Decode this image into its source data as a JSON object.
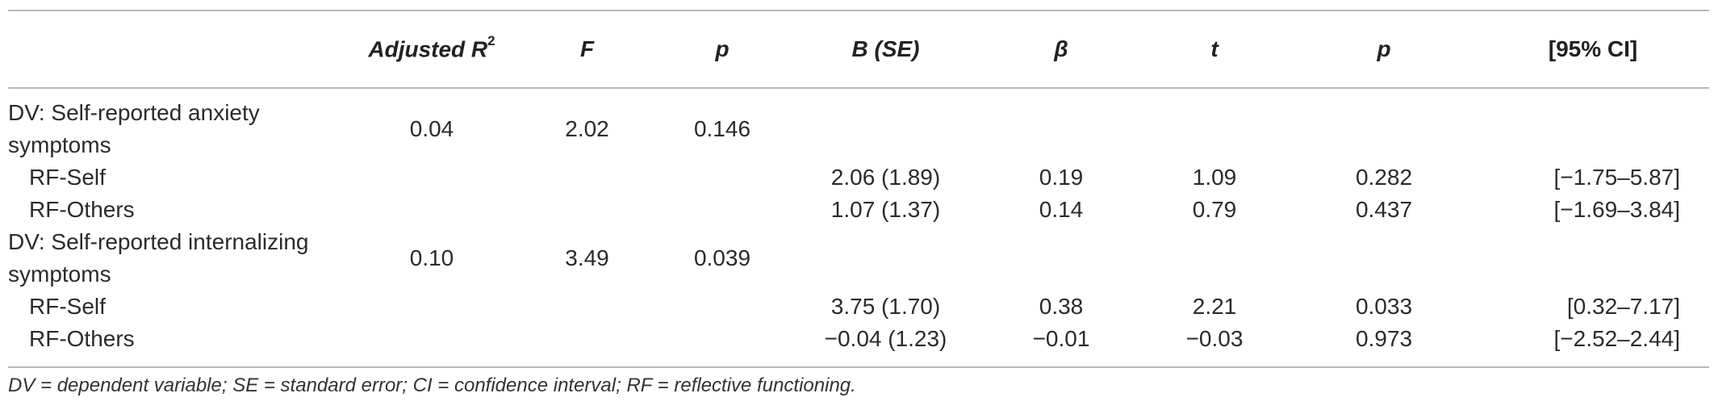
{
  "table": {
    "headers": {
      "col0": "",
      "adj_r2": "Adjusted R",
      "adj_r2_sup": "2",
      "f": "F",
      "p1": "p",
      "b_se": "B (SE)",
      "beta": "β",
      "t": "t",
      "p2": "p",
      "ci": "[95% CI]"
    },
    "rows": [
      {
        "label": "DV: Self-reported anxiety symptoms",
        "adj_r2": "0.04",
        "f": "2.02",
        "p1": "0.146",
        "b_se": "",
        "beta": "",
        "t": "",
        "p2": "",
        "ci": ""
      },
      {
        "label": "RF-Self",
        "adj_r2": "",
        "f": "",
        "p1": "",
        "b_se": "2.06 (1.89)",
        "beta": "0.19",
        "t": "1.09",
        "p2": "0.282",
        "ci": "[−1.75–5.87]"
      },
      {
        "label": "RF-Others",
        "adj_r2": "",
        "f": "",
        "p1": "",
        "b_se": "1.07 (1.37)",
        "beta": "0.14",
        "t": "0.79",
        "p2": "0.437",
        "ci": "[−1.69–3.84]"
      },
      {
        "label": "DV: Self-reported internalizing symptoms",
        "adj_r2": "0.10",
        "f": "3.49",
        "p1": "0.039",
        "b_se": "",
        "beta": "",
        "t": "",
        "p2": "",
        "ci": ""
      },
      {
        "label": "RF-Self",
        "adj_r2": "",
        "f": "",
        "p1": "",
        "b_se": "3.75 (1.70)",
        "beta": "0.38",
        "t": "2.21",
        "p2": "0.033",
        "ci": "[0.32–7.17]"
      },
      {
        "label": "RF-Others",
        "adj_r2": "",
        "f": "",
        "p1": "",
        "b_se": "−0.04 (1.23)",
        "beta": "−0.01",
        "t": "−0.03",
        "p2": "0.973",
        "ci": "[−2.52–2.44]"
      }
    ]
  },
  "footnote": "DV = dependent variable; SE = standard error; CI = confidence interval; RF = reflective functioning."
}
